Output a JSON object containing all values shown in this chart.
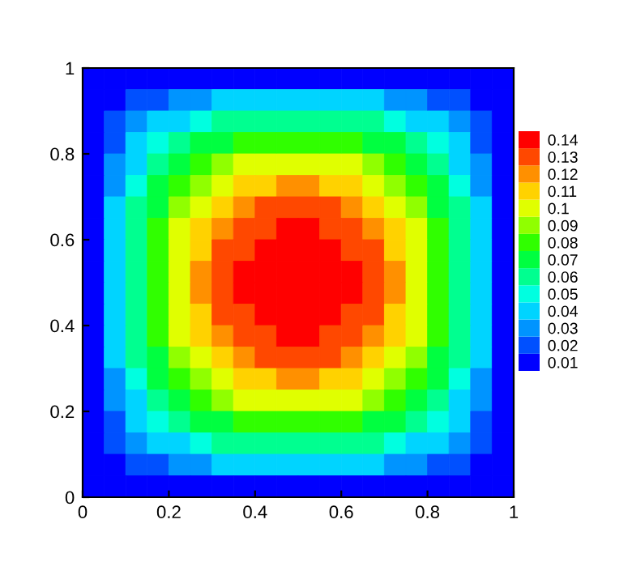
{
  "chart_data": {
    "type": "heatmap",
    "x": [
      0.025,
      0.075,
      0.125,
      0.175,
      0.225,
      0.275,
      0.325,
      0.375,
      0.425,
      0.475,
      0.525,
      0.575,
      0.625,
      0.675,
      0.725,
      0.775,
      0.825,
      0.875,
      0.925,
      0.975
    ],
    "y": [
      0.975,
      0.925,
      0.875,
      0.825,
      0.775,
      0.725,
      0.675,
      0.625,
      0.575,
      0.525,
      0.475,
      0.425,
      0.375,
      0.325,
      0.275,
      0.225,
      0.175,
      0.125,
      0.075,
      0.025
    ],
    "xlim": [
      0,
      1
    ],
    "ylim": [
      0,
      1
    ],
    "xticks": [
      0,
      0.2,
      0.4,
      0.6,
      0.8,
      1
    ],
    "yticks": [
      0,
      0.2,
      0.4,
      0.6,
      0.8,
      1
    ],
    "clim": [
      0.005,
      0.145
    ],
    "cticks": [
      0.01,
      0.02,
      0.03,
      0.04,
      0.05,
      0.06,
      0.07,
      0.08,
      0.09,
      0.1,
      0.11,
      0.12,
      0.13,
      0.14
    ],
    "colors": [
      "#0000ff",
      "#0050ff",
      "#0094ff",
      "#00d4ff",
      "#00ffe0",
      "#00ff90",
      "#00ff40",
      "#30ff00",
      "#90ff00",
      "#e0ff00",
      "#ffd200",
      "#ff9000",
      "#ff4800",
      "#ff0000"
    ],
    "cells": [
      [
        0.01,
        0.01,
        0.01,
        0.01,
        0.01,
        0.01,
        0.01,
        0.01,
        0.01,
        0.01,
        0.01,
        0.01,
        0.01,
        0.01,
        0.01,
        0.01,
        0.01,
        0.01,
        0.01,
        0.01
      ],
      [
        0.01,
        0.01,
        0.02,
        0.02,
        0.03,
        0.03,
        0.04,
        0.04,
        0.04,
        0.04,
        0.04,
        0.04,
        0.04,
        0.04,
        0.03,
        0.03,
        0.02,
        0.02,
        0.01,
        0.01
      ],
      [
        0.01,
        0.02,
        0.03,
        0.04,
        0.04,
        0.05,
        0.06,
        0.06,
        0.06,
        0.06,
        0.06,
        0.06,
        0.06,
        0.06,
        0.05,
        0.04,
        0.04,
        0.03,
        0.02,
        0.01
      ],
      [
        0.01,
        0.02,
        0.04,
        0.05,
        0.06,
        0.07,
        0.07,
        0.08,
        0.08,
        0.08,
        0.08,
        0.08,
        0.08,
        0.07,
        0.07,
        0.06,
        0.05,
        0.04,
        0.02,
        0.01
      ],
      [
        0.01,
        0.03,
        0.04,
        0.06,
        0.07,
        0.08,
        0.09,
        0.1,
        0.1,
        0.1,
        0.1,
        0.1,
        0.1,
        0.09,
        0.08,
        0.07,
        0.06,
        0.04,
        0.03,
        0.01
      ],
      [
        0.01,
        0.03,
        0.05,
        0.07,
        0.08,
        0.09,
        0.1,
        0.11,
        0.11,
        0.12,
        0.12,
        0.11,
        0.11,
        0.1,
        0.09,
        0.08,
        0.07,
        0.05,
        0.03,
        0.01
      ],
      [
        0.01,
        0.04,
        0.06,
        0.07,
        0.09,
        0.1,
        0.11,
        0.12,
        0.13,
        0.13,
        0.13,
        0.13,
        0.12,
        0.11,
        0.1,
        0.09,
        0.07,
        0.06,
        0.04,
        0.01
      ],
      [
        0.01,
        0.04,
        0.06,
        0.08,
        0.1,
        0.11,
        0.12,
        0.13,
        0.13,
        0.14,
        0.14,
        0.13,
        0.13,
        0.12,
        0.11,
        0.1,
        0.08,
        0.06,
        0.04,
        0.01
      ],
      [
        0.01,
        0.04,
        0.06,
        0.08,
        0.1,
        0.11,
        0.13,
        0.13,
        0.14,
        0.14,
        0.14,
        0.14,
        0.13,
        0.13,
        0.11,
        0.1,
        0.08,
        0.06,
        0.04,
        0.01
      ],
      [
        0.01,
        0.04,
        0.06,
        0.08,
        0.1,
        0.12,
        0.13,
        0.14,
        0.14,
        0.14,
        0.14,
        0.14,
        0.14,
        0.13,
        0.12,
        0.1,
        0.08,
        0.06,
        0.04,
        0.01
      ],
      [
        0.01,
        0.04,
        0.06,
        0.08,
        0.1,
        0.12,
        0.13,
        0.14,
        0.14,
        0.14,
        0.14,
        0.14,
        0.14,
        0.13,
        0.12,
        0.1,
        0.08,
        0.06,
        0.04,
        0.01
      ],
      [
        0.01,
        0.04,
        0.06,
        0.08,
        0.1,
        0.11,
        0.13,
        0.13,
        0.14,
        0.14,
        0.14,
        0.14,
        0.13,
        0.13,
        0.11,
        0.1,
        0.08,
        0.06,
        0.04,
        0.01
      ],
      [
        0.01,
        0.04,
        0.06,
        0.08,
        0.1,
        0.11,
        0.12,
        0.13,
        0.13,
        0.14,
        0.14,
        0.13,
        0.13,
        0.12,
        0.11,
        0.1,
        0.08,
        0.06,
        0.04,
        0.01
      ],
      [
        0.01,
        0.04,
        0.06,
        0.07,
        0.09,
        0.1,
        0.11,
        0.12,
        0.13,
        0.13,
        0.13,
        0.13,
        0.12,
        0.11,
        0.1,
        0.09,
        0.07,
        0.06,
        0.04,
        0.01
      ],
      [
        0.01,
        0.03,
        0.05,
        0.07,
        0.08,
        0.09,
        0.1,
        0.11,
        0.11,
        0.12,
        0.12,
        0.11,
        0.11,
        0.1,
        0.09,
        0.08,
        0.07,
        0.05,
        0.03,
        0.01
      ],
      [
        0.01,
        0.03,
        0.04,
        0.06,
        0.07,
        0.08,
        0.09,
        0.1,
        0.1,
        0.1,
        0.1,
        0.1,
        0.1,
        0.09,
        0.08,
        0.07,
        0.06,
        0.04,
        0.03,
        0.01
      ],
      [
        0.01,
        0.02,
        0.04,
        0.05,
        0.06,
        0.07,
        0.07,
        0.08,
        0.08,
        0.08,
        0.08,
        0.08,
        0.08,
        0.07,
        0.07,
        0.06,
        0.05,
        0.04,
        0.02,
        0.01
      ],
      [
        0.01,
        0.02,
        0.03,
        0.04,
        0.04,
        0.05,
        0.06,
        0.06,
        0.06,
        0.06,
        0.06,
        0.06,
        0.06,
        0.06,
        0.05,
        0.04,
        0.04,
        0.03,
        0.02,
        0.01
      ],
      [
        0.01,
        0.01,
        0.02,
        0.02,
        0.03,
        0.03,
        0.04,
        0.04,
        0.04,
        0.04,
        0.04,
        0.04,
        0.04,
        0.04,
        0.03,
        0.03,
        0.02,
        0.02,
        0.01,
        0.01
      ],
      [
        0.01,
        0.01,
        0.01,
        0.01,
        0.01,
        0.01,
        0.01,
        0.01,
        0.01,
        0.01,
        0.01,
        0.01,
        0.01,
        0.01,
        0.01,
        0.01,
        0.01,
        0.01,
        0.01,
        0.01
      ]
    ]
  }
}
